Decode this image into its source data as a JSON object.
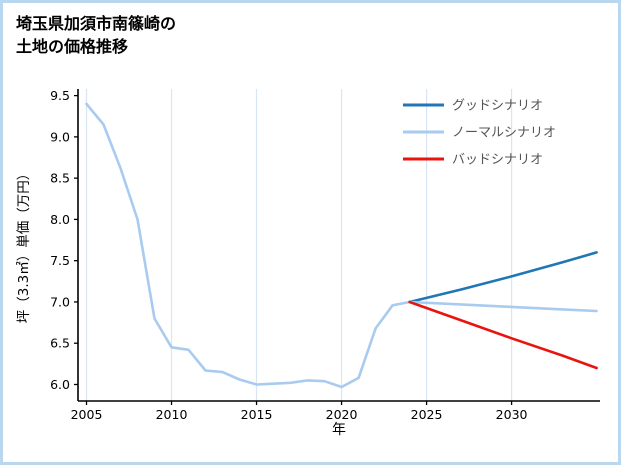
{
  "page": {
    "title_line1": "埼玉県加須市南篠崎の",
    "title_line2": "土地の価格推移",
    "frame_color": "#b9d8ef",
    "background": "#ffffff"
  },
  "chart_data": {
    "type": "line",
    "title": "埼玉県加須市南篠崎の土地の価格推移",
    "xlabel": "年",
    "ylabel": "坪（3.3㎡）単価（万円）",
    "xlim": [
      2004.5,
      2035.2
    ],
    "ylim": [
      5.8,
      9.58
    ],
    "xticks": [
      2005,
      2010,
      2015,
      2020,
      2025,
      2030
    ],
    "yticks": [
      6.0,
      6.5,
      7.0,
      7.5,
      8.0,
      8.5,
      9.0,
      9.5
    ],
    "grid": "vertical",
    "grid_color": "#d8e5f2",
    "axis_color": "#000000",
    "tick_label_color": "#000000",
    "legend_text_color": "#555555",
    "legend_position": "upper-right",
    "series": [
      {
        "id": "history",
        "label": "",
        "in_legend": false,
        "color": "#a8cbef",
        "x": [
          2005,
          2006,
          2007,
          2008,
          2009,
          2010,
          2011,
          2012,
          2013,
          2014,
          2015,
          2016,
          2017,
          2018,
          2019,
          2020,
          2021,
          2022,
          2023,
          2024
        ],
        "values": [
          9.4,
          9.15,
          8.62,
          8.0,
          6.8,
          6.45,
          6.42,
          6.17,
          6.15,
          6.06,
          6.0,
          6.01,
          6.02,
          6.05,
          6.04,
          5.97,
          6.08,
          6.68,
          6.96,
          7.0
        ]
      },
      {
        "id": "good",
        "label": "グッドシナリオ",
        "in_legend": true,
        "color": "#1f77b4",
        "x": [
          2024,
          2027,
          2030,
          2033,
          2035
        ],
        "values": [
          7.0,
          7.15,
          7.31,
          7.48,
          7.6
        ]
      },
      {
        "id": "normal",
        "label": "ノーマルシナリオ",
        "in_legend": true,
        "color": "#a8cbef",
        "x": [
          2024,
          2027,
          2030,
          2033,
          2035
        ],
        "values": [
          7.0,
          6.97,
          6.94,
          6.91,
          6.89
        ]
      },
      {
        "id": "bad",
        "label": "バッドシナリオ",
        "in_legend": true,
        "color": "#e8150f",
        "x": [
          2024,
          2027,
          2030,
          2033,
          2035
        ],
        "values": [
          7.0,
          6.78,
          6.56,
          6.35,
          6.2
        ]
      }
    ]
  }
}
